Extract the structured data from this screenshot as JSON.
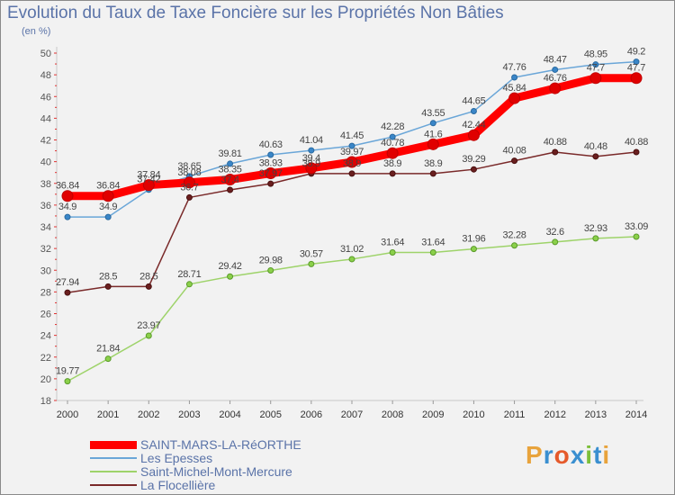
{
  "header": {
    "title": "Evolution du Taux de Taxe Foncière sur les Propriétés Non Bâties",
    "unit": "(en %)"
  },
  "logo": {
    "text": "Proxiti",
    "colors": [
      "#e8a33c",
      "#3a8fd0",
      "#e55a2b",
      "#3a8fd0",
      "#7cbf3a",
      "#3a8fd0",
      "#e8a33c"
    ]
  },
  "chart_data": {
    "type": "line",
    "title": "Evolution du Taux de Taxe Foncière sur les Propriétés Non Bâties",
    "ylabel": "(en %)",
    "xlabel": "",
    "ylim": [
      18,
      50
    ],
    "yticks": [
      18,
      20,
      22,
      24,
      26,
      28,
      30,
      32,
      34,
      36,
      38,
      40,
      42,
      44,
      46,
      48,
      50
    ],
    "grid": false,
    "legend_position": "bottom-left",
    "x": [
      "2000",
      "2001",
      "2002",
      "2003",
      "2004",
      "2005",
      "2006",
      "2007",
      "2008",
      "2009",
      "2010",
      "2011",
      "2012",
      "2013",
      "2014"
    ],
    "series": [
      {
        "name": "SAINT-MARS-LA-RéORTHE",
        "color": "#ff0000",
        "values": [
          36.84,
          36.84,
          37.84,
          38.08,
          38.35,
          38.93,
          39.4,
          39.97,
          40.78,
          41.6,
          42.44,
          45.84,
          46.76,
          47.7,
          47.7
        ],
        "labels": [
          "36.84",
          "36.84",
          "37.84",
          "38.08",
          "38.35",
          "38.93",
          "39.4",
          "39.97",
          "40.78",
          "41.6",
          "42.44",
          "45.84",
          "46.76",
          "47.7",
          "47.7"
        ]
      },
      {
        "name": "Les Epesses",
        "color": "#6aa6d8",
        "values": [
          34.9,
          34.9,
          37.42,
          38.65,
          39.81,
          40.63,
          41.04,
          41.45,
          42.28,
          43.55,
          44.65,
          47.76,
          48.47,
          48.95,
          49.2
        ],
        "labels": [
          "34.9",
          "34.9",
          "37.42",
          "38.65",
          "39.81",
          "40.63",
          "41.04",
          "41.45",
          "42.28",
          "43.55",
          "44.65",
          "47.76",
          "48.47",
          "48.95",
          "49.2"
        ]
      },
      {
        "name": "Saint-Michel-Mont-Mercure",
        "color": "#9ed36a",
        "values": [
          19.77,
          21.84,
          23.97,
          28.71,
          29.42,
          29.98,
          30.57,
          31.02,
          31.64,
          31.64,
          31.96,
          32.28,
          32.6,
          32.93,
          33.09
        ],
        "labels": [
          "19.77",
          "21.84",
          "23.97",
          "28.71",
          "29.42",
          "29.98",
          "30.57",
          "31.02",
          "31.64",
          "31.64",
          "31.96",
          "32.28",
          "32.6",
          "32.93",
          "33.09"
        ]
      },
      {
        "name": "La Flocellière",
        "color": "#7a2a2a",
        "values": [
          27.94,
          28.5,
          28.5,
          36.7,
          37.4,
          37.97,
          38.9,
          38.9,
          38.9,
          38.9,
          39.29,
          40.08,
          40.88,
          40.48,
          40.88
        ],
        "labels": [
          "27.94",
          "28.5",
          "28.5",
          "36.7",
          "37.4",
          "37.97",
          "38.9",
          "38.9",
          "38.9",
          "38.9",
          "39.29",
          "40.08",
          "40.88",
          "40.48",
          "40.88"
        ]
      }
    ]
  }
}
